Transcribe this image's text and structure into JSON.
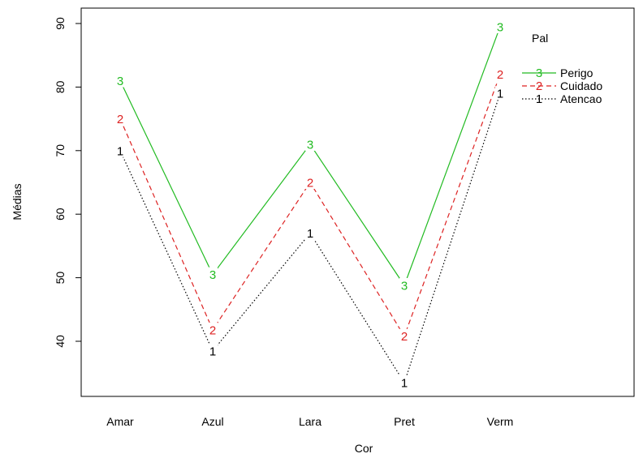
{
  "chart_data": {
    "type": "line",
    "xlabel": "Cor",
    "ylabel": "Médias",
    "categories": [
      "Amar",
      "Azul",
      "Lara",
      "Pret",
      "Verm"
    ],
    "yticks": [
      40,
      50,
      60,
      70,
      80,
      90
    ],
    "ylim": [
      31.5,
      92
    ],
    "grid": false,
    "legend": {
      "title": "Pal",
      "placement": "top-right",
      "entries": [
        {
          "symbol": "3",
          "label": "Perigo",
          "color": "#22bb22",
          "dash": "solid"
        },
        {
          "symbol": "2",
          "label": "Cuidado",
          "color": "#dd2222",
          "dash": "dashed"
        },
        {
          "symbol": "1",
          "label": "Atencao",
          "color": "#000000",
          "dash": "dotted"
        }
      ]
    },
    "series": [
      {
        "name": "Perigo",
        "symbol": "3",
        "color": "#22bb22",
        "dash": "solid",
        "values": [
          81,
          50.5,
          71,
          48.8,
          89.5
        ]
      },
      {
        "name": "Cuidado",
        "symbol": "2",
        "color": "#dd2222",
        "dash": "dashed",
        "values": [
          75,
          41.8,
          65,
          40.8,
          82
        ]
      },
      {
        "name": "Atencao",
        "symbol": "1",
        "color": "#000000",
        "dash": "dotted",
        "values": [
          70,
          38.5,
          57,
          33.5,
          79
        ]
      }
    ]
  }
}
